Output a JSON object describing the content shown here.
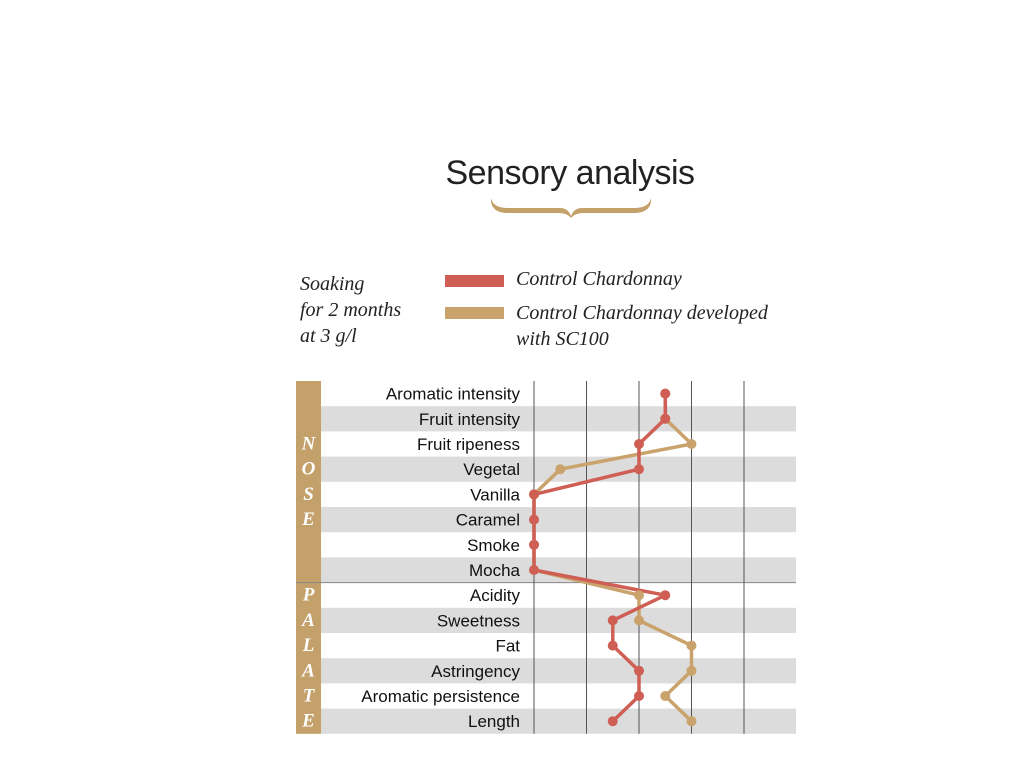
{
  "title": "Sensory analysis",
  "condition": [
    "Soaking",
    "for 2 months",
    "at 3 g/l"
  ],
  "colors": {
    "series1": "#cf5f55",
    "series2": "#c9a26c",
    "band": "#c4a06b",
    "stripe": "#dcdcdc",
    "grid": "#555555"
  },
  "chart_data": {
    "type": "line",
    "orientation": "horizontal",
    "categories": [
      "Aromatic intensity",
      "Fruit intensity",
      "Fruit ripeness",
      "Vegetal",
      "Vanilla",
      "Caramel",
      "Smoke",
      "Mocha",
      "Acidity",
      "Sweetness",
      "Fat",
      "Astringency",
      "Aromatic persistence",
      "Length"
    ],
    "groups": [
      {
        "name": "NOSE",
        "letters": [
          "N",
          "O",
          "S",
          "E"
        ],
        "from": 0,
        "to": 7
      },
      {
        "name": "PALATE",
        "letters": [
          "P",
          "A",
          "L",
          "A",
          "T",
          "E"
        ],
        "from": 8,
        "to": 13
      }
    ],
    "xlim": [
      0,
      5
    ],
    "gridlines": [
      0,
      1,
      2,
      3,
      4
    ],
    "series": [
      {
        "name": "Control Chardonnay",
        "values": [
          2.5,
          2.5,
          2.0,
          2.0,
          0.0,
          0.0,
          0.0,
          0.0,
          2.5,
          1.5,
          1.5,
          2.0,
          2.0,
          1.5
        ]
      },
      {
        "name": "Control Chardonnay developed with SC100",
        "values": [
          2.5,
          2.5,
          3.0,
          0.5,
          0.0,
          0.0,
          0.0,
          0.0,
          2.0,
          2.0,
          3.0,
          3.0,
          2.5,
          3.0
        ]
      }
    ],
    "legend": [
      {
        "lines": [
          "Control Chardonnay"
        ]
      },
      {
        "lines": [
          "Control Chardonnay developed",
          "with SC100"
        ]
      }
    ]
  }
}
